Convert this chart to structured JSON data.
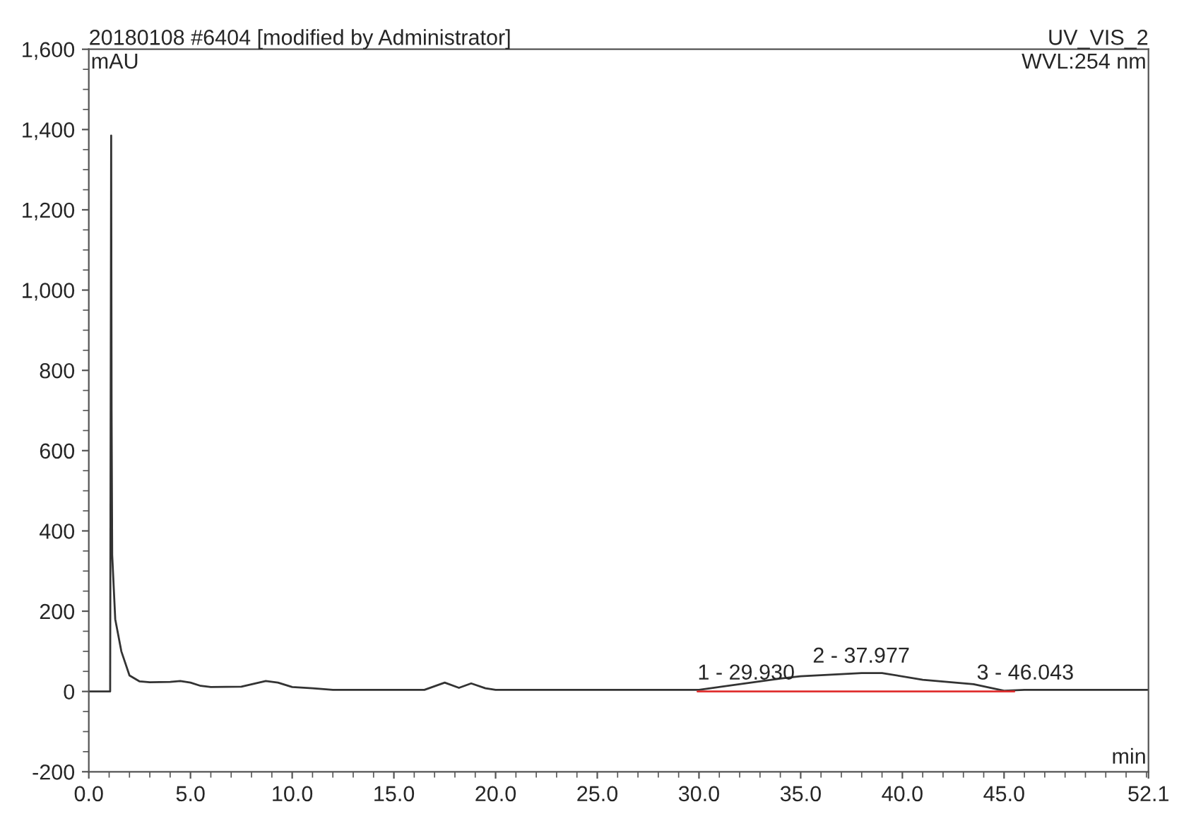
{
  "chart_data": {
    "type": "line",
    "title": "20180108 #6404 [modified by Administrator]",
    "subtitle": "UV_VIS_2",
    "xlabel": "min",
    "ylabel": "mAU",
    "annotations": [
      "WVL:254 nm",
      {
        "text": "1 - 29.930",
        "x": 29.93,
        "y": 4
      },
      {
        "text": "2 - 37.977",
        "x": 37.977,
        "y": 46
      },
      {
        "text": "3 - 46.043",
        "x": 46.043,
        "y": 4
      }
    ],
    "series": [
      {
        "color": "#333333",
        "x": [
          0,
          1.05,
          1.1,
          1.12,
          1.15,
          1.3,
          1.6,
          2.0,
          2.5,
          3.0,
          4.0,
          4.5,
          5.0,
          5.5,
          6.0,
          7.5,
          8.7,
          9.3,
          10.0,
          11.0,
          12.0,
          16.5,
          17.5,
          18.2,
          18.8,
          19.5,
          20.0,
          30.0,
          34.0,
          35.0,
          38.0,
          39.0,
          41.0,
          43.5,
          45.0,
          46.0,
          52.1
        ],
        "values": [
          0,
          0,
          1385,
          700,
          340,
          180,
          100,
          40,
          25,
          23,
          24,
          26,
          22,
          14,
          11,
          12,
          26,
          22,
          11,
          8,
          4,
          4,
          22,
          9,
          20,
          8,
          4,
          4,
          32,
          38,
          46,
          46,
          29,
          18,
          2,
          4,
          4
        ]
      },
      {
        "type": "line",
        "color": "#e03030",
        "x": [
          29.93,
          45.5
        ],
        "values": [
          0,
          0
        ]
      }
    ],
    "xlim": [
      0,
      52.1
    ],
    "xticks": [
      {
        "value": 0,
        "label": "0.0"
      },
      {
        "value": 5,
        "label": "5.0"
      },
      {
        "value": 10,
        "label": "10.0"
      },
      {
        "value": 15,
        "label": "15.0"
      },
      {
        "value": 20,
        "label": "20.0"
      },
      {
        "value": 25,
        "label": "25.0"
      },
      {
        "value": 30,
        "label": "30.0"
      },
      {
        "value": 35,
        "label": "35.0"
      },
      {
        "value": 40,
        "label": "40.0"
      },
      {
        "value": 45,
        "label": "45.0"
      },
      {
        "value": 52.1,
        "label": "52.1"
      }
    ],
    "ylim": [
      -200,
      1600
    ],
    "yticks": [
      -200,
      0,
      200,
      400,
      600,
      800,
      {
        "value": 1000,
        "label": "1,000"
      },
      {
        "value": 1200,
        "label": "1,200"
      },
      {
        "value": 1400,
        "label": "1,400"
      },
      {
        "value": 1600,
        "label": "1,600"
      }
    ],
    "grid": false,
    "legend": false,
    "marker": "none",
    "line_style": "solid"
  }
}
